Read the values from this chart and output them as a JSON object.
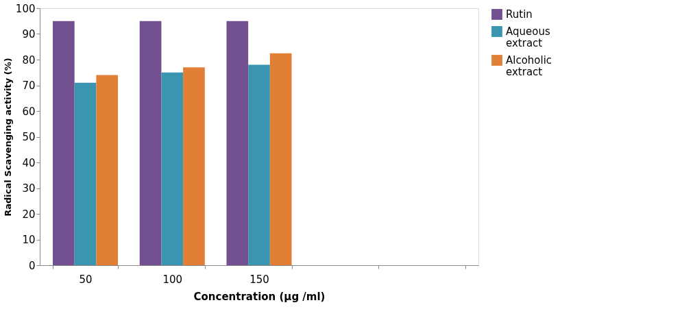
{
  "chart_data": {
    "type": "bar",
    "xlabel": "Concentration (µg /ml)",
    "ylabel": "Radical Scavenging activity (%)",
    "categories": [
      "50",
      "100",
      "150",
      null,
      null
    ],
    "series": [
      {
        "name": "Rutin",
        "color": "#73508f",
        "values": [
          95,
          95,
          95,
          null,
          null
        ]
      },
      {
        "name": "Aqueous extract",
        "color": "#3a95b0",
        "values": [
          71,
          75,
          78,
          null,
          null
        ]
      },
      {
        "name": "Alcoholic extract",
        "color": "#e07f35",
        "values": [
          74,
          77,
          82.5,
          null,
          null
        ]
      }
    ],
    "ylim": [
      0,
      100
    ],
    "yticks": [
      0,
      10,
      20,
      30,
      40,
      50,
      60,
      70,
      80,
      90,
      100
    ],
    "grid": false,
    "legend": "right"
  }
}
